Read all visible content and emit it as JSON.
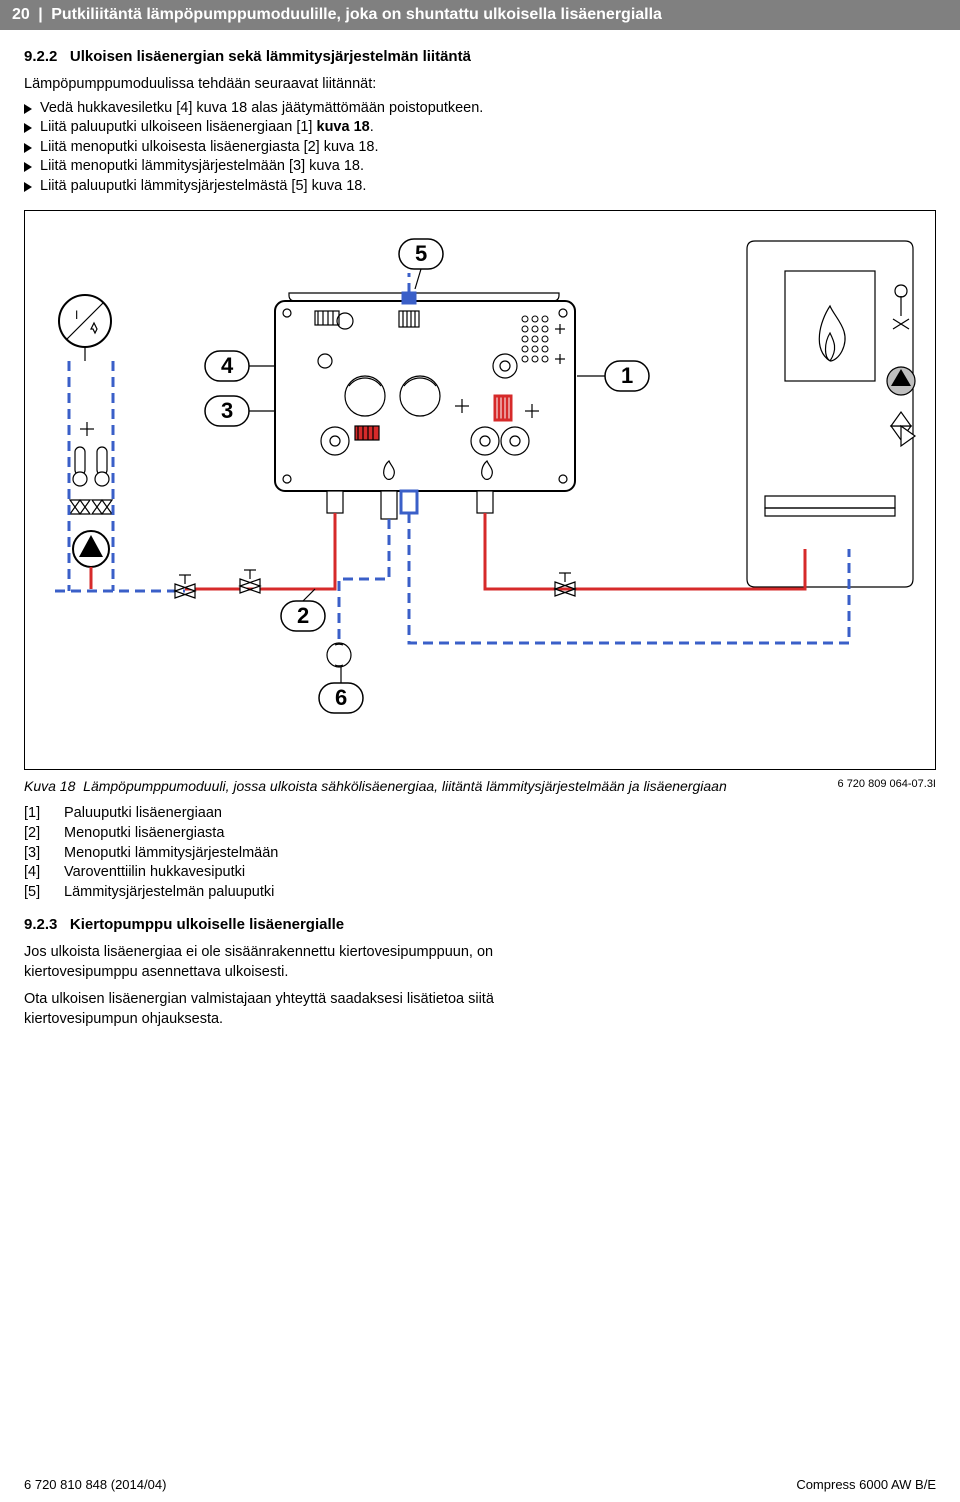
{
  "header": {
    "page_number": "20",
    "separator": "|",
    "title": "Putkiliitäntä lämpöpumppumoduulille, joka on shuntattu ulkoisella lisäenergialla"
  },
  "section_922": {
    "number": "9.2.2",
    "title": "Ulkoisen lisäenergian sekä lämmitysjärjestelmän liitäntä",
    "intro": "Lämpöpumppumoduulissa tehdään seuraavat liitännät:",
    "bullets": [
      "Vedä hukkavesiletku [4] kuva 18 alas jäätymättömään poistoputkeen.",
      "Liitä paluuputki ulkoiseen lisäenergiaan [1] kuva 18.",
      "Liitä menoputki ulkoisesta lisäenergiasta [2] kuva 18.",
      "Liitä menoputki lämmitysjärjestelmään [3] kuva 18.",
      "Liitä paluuputki lämmitysjärjestelmästä [5] kuva 18."
    ],
    "bold_index": 1
  },
  "figure": {
    "callouts": {
      "c1": "1",
      "c2": "2",
      "c3": "3",
      "c4": "4",
      "c5": "5",
      "c6": "6"
    },
    "caption_label": "Kuva 18",
    "caption_text": "Lämpöpumppumoduuli, jossa ulkoista sähkölisäenergiaa, liitäntä lämmitysjärjestelmään ja lisäenergiaan",
    "doc_ref": "6 720 809 064-07.3I",
    "colors": {
      "red": "#d62a2a",
      "blue": "#3a5fc8",
      "gray": "#808080",
      "black": "#000000",
      "white": "#ffffff"
    }
  },
  "legend": {
    "items": [
      {
        "key": "[1]",
        "text": "Paluuputki lisäenergiaan"
      },
      {
        "key": "[2]",
        "text": "Menoputki lisäenergiasta"
      },
      {
        "key": "[3]",
        "text": "Menoputki lämmitysjärjestelmään"
      },
      {
        "key": "[4]",
        "text": "Varoventtiilin hukkavesiputki"
      },
      {
        "key": "[5]",
        "text": "Lämmitysjärjestelmän paluuputki"
      }
    ]
  },
  "section_923": {
    "number": "9.2.3",
    "title": "Kiertopumppu ulkoiselle lisäenergialle",
    "para1": "Jos ulkoista lisäenergiaa ei ole sisäänrakennettu kiertovesipumppuun, on kiertovesipumppu asennettava ulkoisesti.",
    "para2": "Ota ulkoisen lisäenergian valmistajaan yhteyttä saadaksesi lisätietoa siitä kiertovesipumpun ohjauksesta."
  },
  "footer": {
    "left": "6 720 810 848 (2014/04)",
    "right": "Compress 6000 AW B/E"
  }
}
